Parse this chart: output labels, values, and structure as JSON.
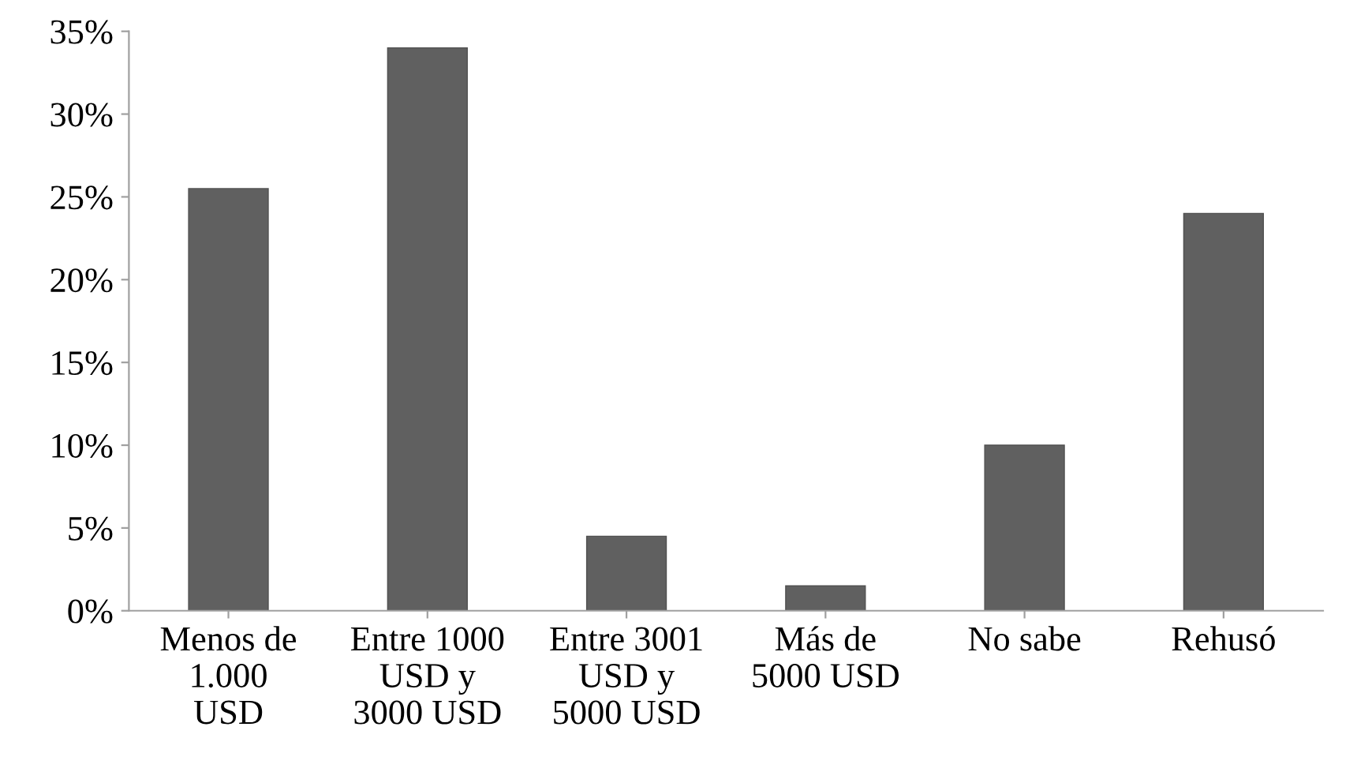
{
  "chart_data": {
    "type": "bar",
    "categories": [
      "Menos de\n1.000\nUSD",
      "Entre 1000\nUSD y\n3000 USD",
      "Entre 3001\nUSD y\n5000 USD",
      "Más de\n5000 USD",
      "No sabe",
      "Rehusó"
    ],
    "values": [
      25.5,
      34,
      4.5,
      1.5,
      10,
      24
    ],
    "color": "#606060",
    "ylim": [
      0,
      35
    ],
    "yticks": [
      {
        "value": 0,
        "label": "0%"
      },
      {
        "value": 5,
        "label": "5%"
      },
      {
        "value": 10,
        "label": "10%"
      },
      {
        "value": 15,
        "label": "15%"
      },
      {
        "value": 20,
        "label": "20%"
      },
      {
        "value": 25,
        "label": "25%"
      },
      {
        "value": 30,
        "label": "30%"
      },
      {
        "value": 35,
        "label": "35%"
      }
    ]
  }
}
